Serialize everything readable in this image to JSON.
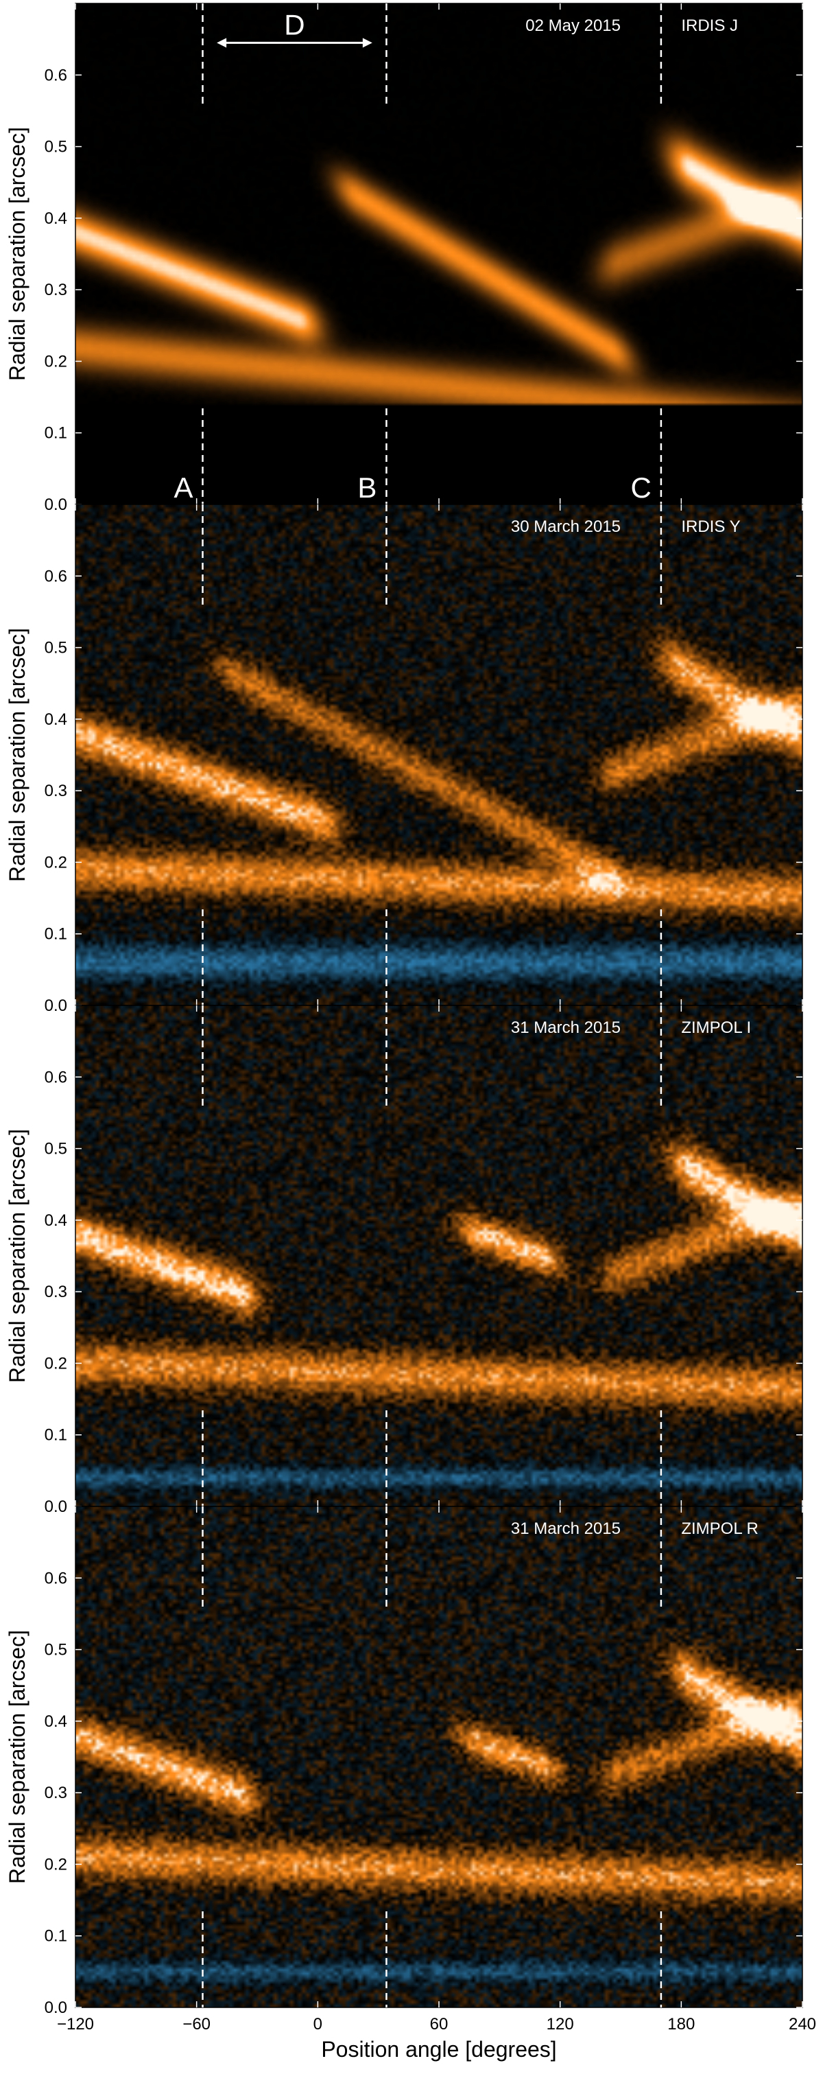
{
  "chart_data": {
    "type": "heatmap",
    "x_label": "Position angle [degrees]",
    "x_ticks": [
      -120,
      -60,
      0,
      60,
      120,
      180,
      240
    ],
    "xlim": [
      -120,
      240
    ],
    "vertical_markers": [
      {
        "x": -57,
        "label": "A"
      },
      {
        "x": 34,
        "label": "B"
      },
      {
        "x": 170,
        "label": "C"
      }
    ],
    "span_annotation": {
      "label": "D",
      "x_range": [
        -50,
        27
      ],
      "y": 0.645
    },
    "colormap": {
      "negative": "#3aa0e0",
      "zero": "#000000",
      "positive": "#ff8c1a",
      "max": "#fff6e6"
    },
    "panels": [
      {
        "title_date": "02 May 2015",
        "title_instrument": "IRDIS J",
        "y_label": "Radial separation [arcsec]",
        "y_ticks": [
          0.0,
          0.1,
          0.2,
          0.3,
          0.4,
          0.5,
          0.6
        ],
        "ylim": [
          0.0,
          0.7
        ],
        "blank_below": 0.14,
        "noise": 0.02,
        "show_letters": true,
        "show_span": true,
        "bands": [
          {
            "x0": -120,
            "x1": 240,
            "y0": 0.22,
            "slope": -0.0003,
            "width": 0.03,
            "amp": 0.65
          },
          {
            "x0": -120,
            "x1": -10,
            "y0": 0.38,
            "slope": -0.0011,
            "width": 0.03,
            "amp": 0.95
          },
          {
            "x0": 20,
            "x1": 145,
            "y0": 0.43,
            "slope": -0.0017,
            "width": 0.028,
            "amp": 0.75
          },
          {
            "x0": 150,
            "x1": 240,
            "y0": 0.34,
            "slope": 0.001,
            "width": 0.032,
            "amp": 0.55
          },
          {
            "x0": 185,
            "x1": 240,
            "y0": 0.47,
            "slope": -0.0016,
            "width": 0.035,
            "amp": 1.0
          }
        ]
      },
      {
        "title_date": "30 March 2015",
        "title_instrument": "IRDIS Y",
        "y_label": "Radial separation [arcsec]",
        "y_ticks": [
          0.0,
          0.1,
          0.2,
          0.3,
          0.4,
          0.5,
          0.6
        ],
        "ylim": [
          0.0,
          0.7
        ],
        "blank_below": 0.0,
        "noise": 0.38,
        "show_letters": false,
        "show_span": false,
        "bands": [
          {
            "x0": -120,
            "x1": 240,
            "y0": 0.19,
            "slope": -0.0001,
            "width": 0.03,
            "amp": 0.7
          },
          {
            "x0": -120,
            "x1": 0,
            "y0": 0.38,
            "slope": -0.001,
            "width": 0.03,
            "amp": 0.85
          },
          {
            "x0": -40,
            "x1": 140,
            "y0": 0.46,
            "slope": -0.0015,
            "width": 0.028,
            "amp": 0.55
          },
          {
            "x0": 150,
            "x1": 240,
            "y0": 0.33,
            "slope": 0.001,
            "width": 0.03,
            "amp": 0.6
          },
          {
            "x0": 180,
            "x1": 240,
            "y0": 0.47,
            "slope": -0.0016,
            "width": 0.035,
            "amp": 0.8
          },
          {
            "x0": -120,
            "x1": 240,
            "y0": 0.06,
            "slope": 0.0,
            "width": 0.025,
            "amp": -0.6
          }
        ]
      },
      {
        "title_date": "31 March 2015",
        "title_instrument": "ZIMPOL I",
        "y_label": "Radial separation [arcsec]",
        "y_ticks": [
          0.0,
          0.1,
          0.2,
          0.3,
          0.4,
          0.5,
          0.6
        ],
        "ylim": [
          0.0,
          0.7
        ],
        "blank_below": 0.0,
        "noise": 0.42,
        "show_letters": false,
        "show_span": false,
        "bands": [
          {
            "x0": -120,
            "x1": 240,
            "y0": 0.2,
            "slope": -0.0001,
            "width": 0.03,
            "amp": 0.7
          },
          {
            "x0": -120,
            "x1": -40,
            "y0": 0.38,
            "slope": -0.001,
            "width": 0.03,
            "amp": 0.95
          },
          {
            "x0": 80,
            "x1": 110,
            "y0": 0.38,
            "slope": -0.001,
            "width": 0.025,
            "amp": 0.9
          },
          {
            "x0": 150,
            "x1": 240,
            "y0": 0.33,
            "slope": 0.001,
            "width": 0.03,
            "amp": 0.6
          },
          {
            "x0": 185,
            "x1": 240,
            "y0": 0.47,
            "slope": -0.0016,
            "width": 0.035,
            "amp": 0.95
          },
          {
            "x0": -120,
            "x1": 240,
            "y0": 0.04,
            "slope": 0.0,
            "width": 0.015,
            "amp": -0.5
          }
        ]
      },
      {
        "title_date": "31 March 2015",
        "title_instrument": "ZIMPOL R",
        "y_label": "Radial separation [arcsec]",
        "y_ticks": [
          0.0,
          0.1,
          0.2,
          0.3,
          0.4,
          0.5,
          0.6
        ],
        "ylim": [
          0.0,
          0.7
        ],
        "blank_below": 0.0,
        "noise": 0.45,
        "show_letters": false,
        "show_span": false,
        "bands": [
          {
            "x0": -120,
            "x1": 240,
            "y0": 0.21,
            "slope": -0.0001,
            "width": 0.03,
            "amp": 0.7
          },
          {
            "x0": -120,
            "x1": -40,
            "y0": 0.38,
            "slope": -0.001,
            "width": 0.03,
            "amp": 0.85
          },
          {
            "x0": 80,
            "x1": 110,
            "y0": 0.37,
            "slope": -0.001,
            "width": 0.025,
            "amp": 0.8
          },
          {
            "x0": 150,
            "x1": 240,
            "y0": 0.33,
            "slope": 0.001,
            "width": 0.03,
            "amp": 0.55
          },
          {
            "x0": 185,
            "x1": 240,
            "y0": 0.46,
            "slope": -0.0016,
            "width": 0.035,
            "amp": 0.9
          },
          {
            "x0": -120,
            "x1": 240,
            "y0": 0.05,
            "slope": 0.0,
            "width": 0.015,
            "amp": -0.45
          }
        ]
      }
    ]
  }
}
